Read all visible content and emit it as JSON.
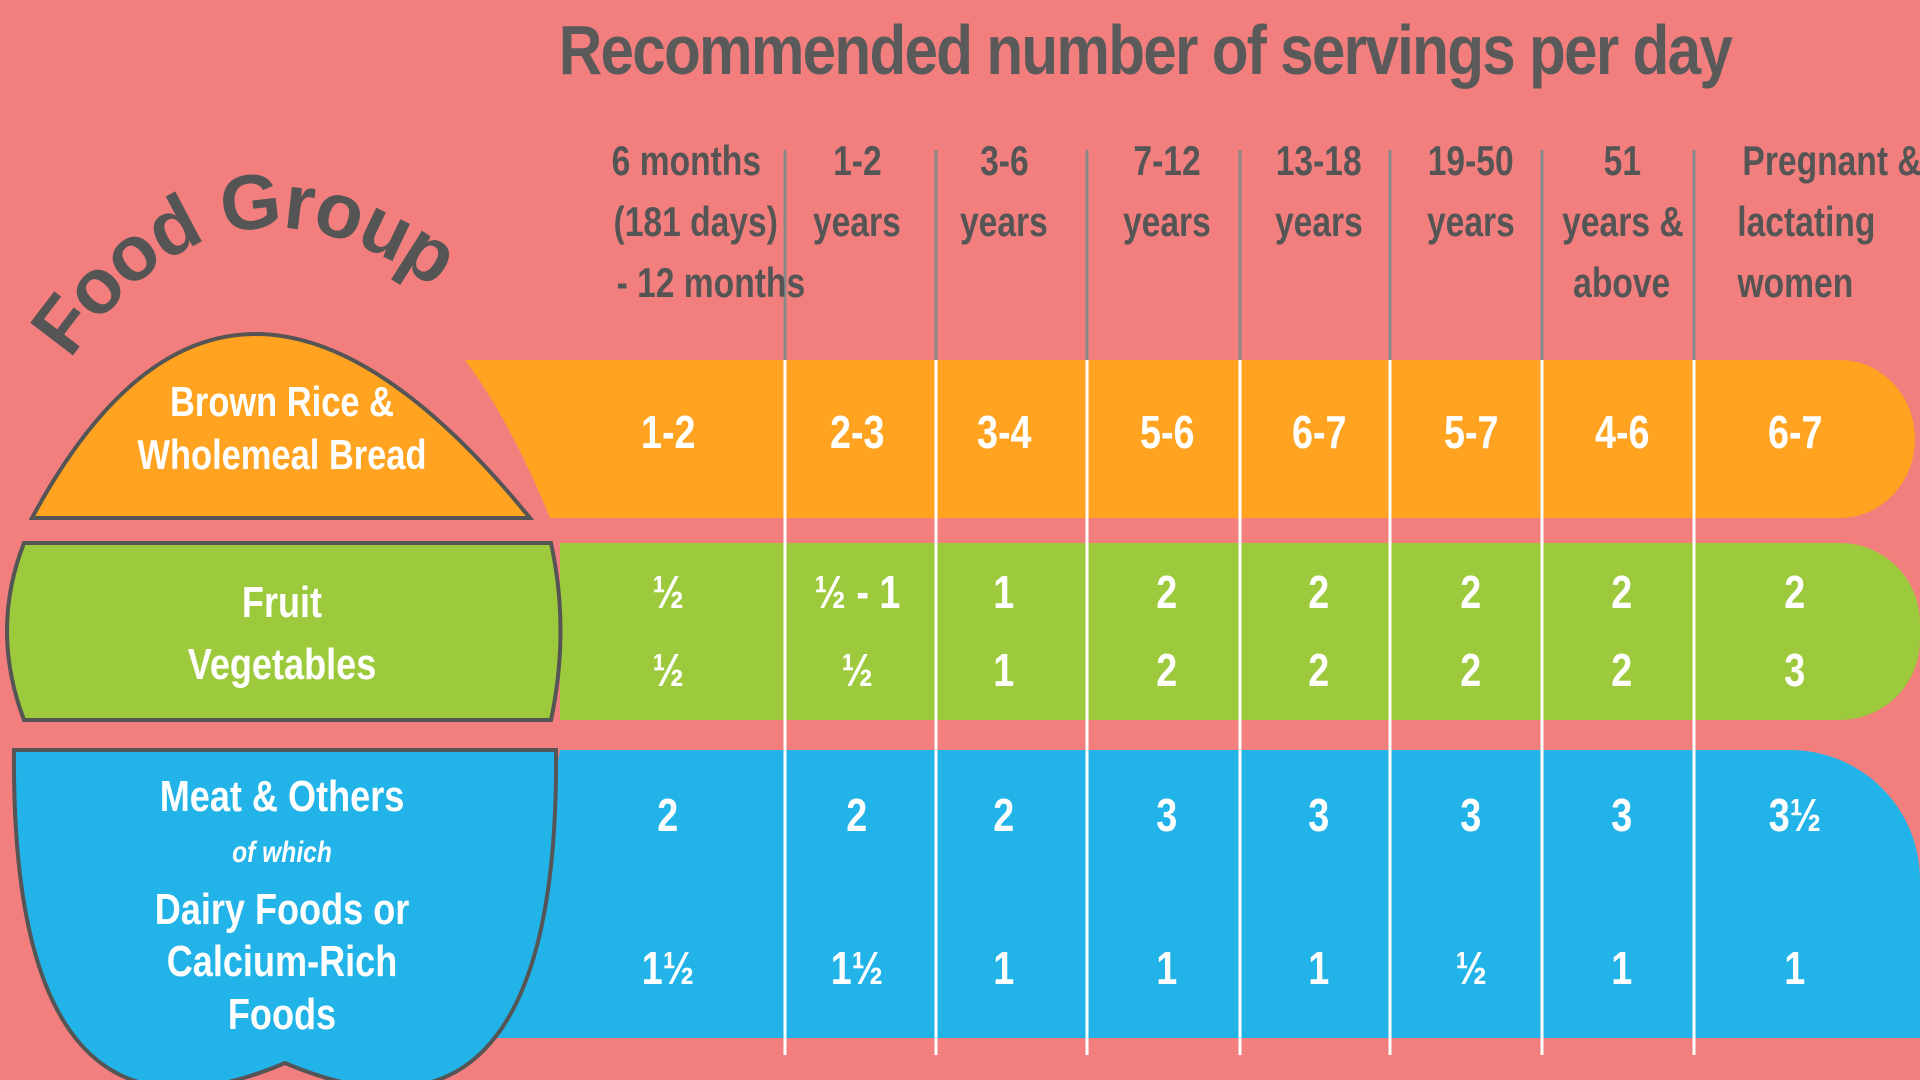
{
  "title": "Recommended number of servings per day",
  "food_groups_label": "Food Groups",
  "columns": [
    [
      "6 months",
      "(181 days)",
      "- 12 months"
    ],
    [
      "1-2",
      "years"
    ],
    [
      "3-6",
      "years"
    ],
    [
      "7-12",
      "years"
    ],
    [
      "13-18",
      "years"
    ],
    [
      "19-50",
      "years"
    ],
    [
      "51",
      "years &",
      "above"
    ],
    [
      "Pregnant &",
      "lactating",
      "women"
    ]
  ],
  "groups": [
    {
      "id": "grains",
      "color": "#ffa320",
      "labels": [
        "Brown Rice &",
        "Wholemeal Bread"
      ],
      "rows": [
        [
          "1-2",
          "2-3",
          "3-4",
          "5-6",
          "6-7",
          "5-7",
          "4-6",
          "6-7"
        ]
      ]
    },
    {
      "id": "fruit-veg",
      "color": "#9dca3d",
      "labels": [
        "Fruit",
        "Vegetables"
      ],
      "rows": [
        [
          "½",
          "½ - 1",
          "1",
          "2",
          "2",
          "2",
          "2",
          "2"
        ],
        [
          "½",
          "½",
          "1",
          "2",
          "2",
          "2",
          "2",
          "3"
        ]
      ]
    },
    {
      "id": "meat",
      "color": "#22b4e8",
      "labels": [
        "Meat & Others",
        "of which",
        "Dairy Foods or",
        "Calcium-Rich",
        "Foods"
      ],
      "rows": [
        [
          "2",
          "2",
          "2",
          "3",
          "3",
          "3",
          "3",
          "3½"
        ],
        [
          "1½",
          "1½",
          "1",
          "1",
          "1",
          "½",
          "1",
          "1"
        ]
      ]
    }
  ],
  "colors": {
    "background": "#f27f7d",
    "text_dark": "#5a5a5a",
    "divider": "#ffffff"
  }
}
